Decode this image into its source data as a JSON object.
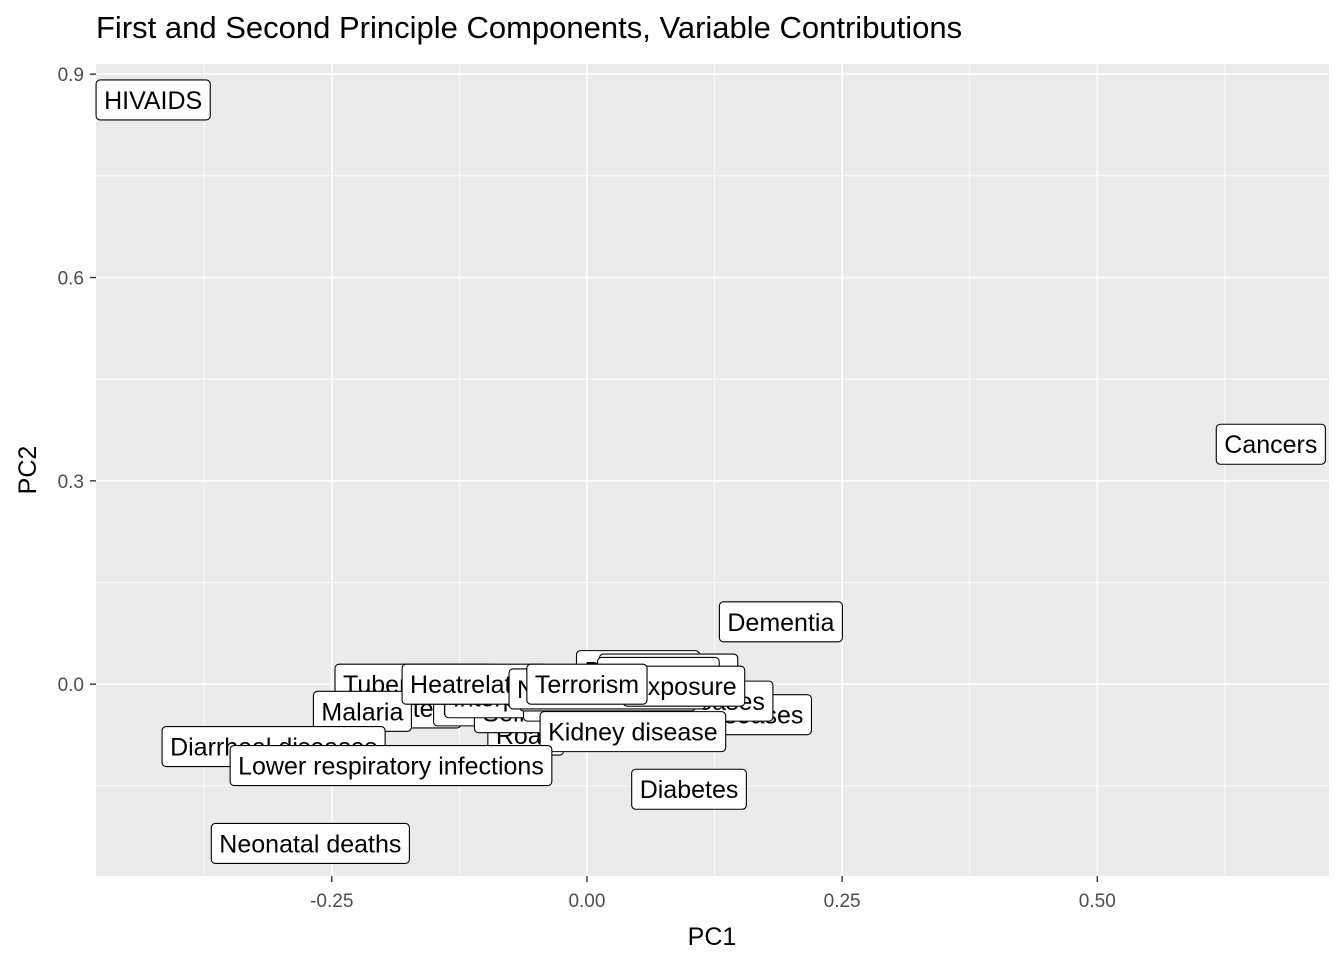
{
  "chart_data": {
    "type": "scatter",
    "title": "First and Second Principle Components, Variable Contributions",
    "xlabel": "PC1",
    "ylabel": "PC2",
    "xlim": [
      -0.481,
      0.727
    ],
    "ylim": [
      -0.283,
      0.915
    ],
    "x_ticks": [
      -0.25,
      0.0,
      0.25,
      0.5
    ],
    "x_tick_labels": [
      "-0.25",
      "0.00",
      "0.25",
      "0.50"
    ],
    "y_ticks": [
      0.0,
      0.3,
      0.6,
      0.9
    ],
    "y_tick_labels": [
      "0.0",
      "0.3",
      "0.6",
      "0.9"
    ],
    "grid": true,
    "points": [
      {
        "label": "Road",
        "x": -0.06,
        "y": -0.075
      },
      {
        "label": "Protein",
        "x": -0.17,
        "y": -0.035
      },
      {
        "label": "Infections",
        "x": -0.09,
        "y": -0.032
      },
      {
        "label": "Self harm",
        "x": -0.05,
        "y": -0.042
      },
      {
        "label": "Interpersonal",
        "x": -0.06,
        "y": -0.02
      },
      {
        "label": "Digestive diseases",
        "x": 0.11,
        "y": -0.045
      },
      {
        "label": "Respiratory diseases",
        "x": 0.06,
        "y": -0.025
      },
      {
        "label": "Liver diseases",
        "x": 0.02,
        "y": -0.01
      },
      {
        "label": "Disorders",
        "x": 0.05,
        "y": 0.02
      },
      {
        "label": "Poisonings",
        "x": 0.08,
        "y": 0.015
      },
      {
        "label": "Drowning",
        "x": 0.07,
        "y": 0.01
      },
      {
        "label": "Tuberculosis",
        "x": -0.17,
        "y": 0.0
      },
      {
        "label": "Malaria",
        "x": -0.22,
        "y": -0.04
      },
      {
        "label": "Heatrelated",
        "x": -0.11,
        "y": 0.0
      },
      {
        "label": "Naturaldisasters",
        "x": 0.02,
        "y": -0.007
      },
      {
        "label": "Exposure",
        "x": 0.095,
        "y": -0.003
      },
      {
        "label": "Terrorism",
        "x": 0.0,
        "y": 0.0
      },
      {
        "label": "Kidney disease",
        "x": 0.045,
        "y": -0.07
      },
      {
        "label": "Diabetes",
        "x": 0.1,
        "y": -0.155
      },
      {
        "label": "Dementia",
        "x": 0.19,
        "y": 0.092
      },
      {
        "label": "Diarrheal diseases",
        "x": -0.307,
        "y": -0.092
      },
      {
        "label": "Lower respiratory infections",
        "x": -0.192,
        "y": -0.12
      },
      {
        "label": "Neonatal deaths",
        "x": -0.271,
        "y": -0.235
      },
      {
        "label": "HIVAIDS",
        "x": -0.425,
        "y": 0.862
      },
      {
        "label": "Cancers",
        "x": 0.67,
        "y": 0.354
      }
    ]
  }
}
